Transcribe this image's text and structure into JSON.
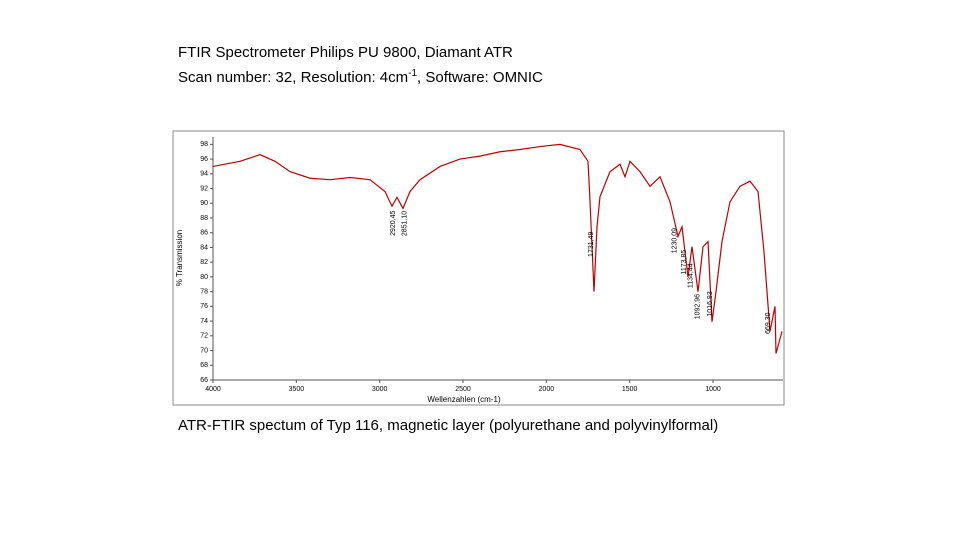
{
  "header": {
    "line1": "FTIR Spectrometer Philips PU 9800, Diamant ATR",
    "line2": [
      "Scan number: 32, Resolution: 4cm",
      "-1",
      ", Software: OMNIC"
    ]
  },
  "caption": "ATR-FTIR spectum of Typ 116, magnetic layer (polyurethane and polyvinylformal)",
  "chart_data": {
    "type": "line",
    "x_label": "Wellenzahlen (cm-1)",
    "y_label": "% Transmission",
    "xlim": [
      4000,
      580
    ],
    "ylim": [
      66,
      99
    ],
    "xticks": [
      4000,
      3500,
      3000,
      2500,
      2000,
      1500,
      1000
    ],
    "yticks": [
      66,
      68,
      70,
      72,
      74,
      76,
      78,
      80,
      82,
      84,
      86,
      88,
      90,
      92,
      94,
      96,
      98
    ],
    "series": [
      {
        "name": "Typ 116",
        "color": "#c00000",
        "x": [
          4000,
          3838,
          3718,
          3628,
          3538,
          3418,
          3298,
          3178,
          3058,
          2968,
          2926,
          2896,
          2860,
          2818,
          2758,
          2638,
          2518,
          2398,
          2278,
          2158,
          2038,
          1918,
          1798,
          1750,
          1738,
          1714,
          1696,
          1678,
          1618,
          1558,
          1528,
          1498,
          1438,
          1378,
          1318,
          1258,
          1210,
          1186,
          1150,
          1126,
          1090,
          1060,
          1030,
          1006,
          982,
          946,
          898,
          838,
          778,
          730,
          694,
          658,
          628,
          622,
          586
        ],
        "values": [
          95.0,
          95.7,
          96.6,
          95.7,
          94.3,
          93.4,
          93.2,
          93.5,
          93.2,
          91.6,
          89.6,
          90.8,
          89.3,
          91.6,
          93.2,
          95.0,
          96.0,
          96.4,
          97.0,
          97.3,
          97.7,
          98.0,
          97.3,
          95.7,
          90.3,
          78.0,
          86.8,
          90.9,
          94.3,
          95.3,
          93.6,
          95.7,
          94.3,
          92.3,
          93.6,
          90.2,
          85.5,
          86.8,
          80.0,
          84.1,
          78.0,
          84.1,
          84.8,
          73.9,
          78.0,
          84.8,
          90.2,
          92.3,
          93.0,
          91.6,
          83.4,
          72.6,
          76.0,
          69.6,
          72.6
        ]
      }
    ],
    "annotations": [
      {
        "x": 2920.45,
        "label": "2920,45"
      },
      {
        "x": 2851.1,
        "label": "2851,10"
      },
      {
        "x": 1731.49,
        "label": "1731,49"
      },
      {
        "x": 1230.09,
        "label": "1230,09"
      },
      {
        "x": 1173.85,
        "label": "1173,85"
      },
      {
        "x": 1134.44,
        "label": "1134,44"
      },
      {
        "x": 1092.96,
        "label": "1092,96"
      },
      {
        "x": 1016.93,
        "label": "1016,93"
      },
      {
        "x": 669.3,
        "label": "669,30"
      }
    ],
    "grid": false
  }
}
